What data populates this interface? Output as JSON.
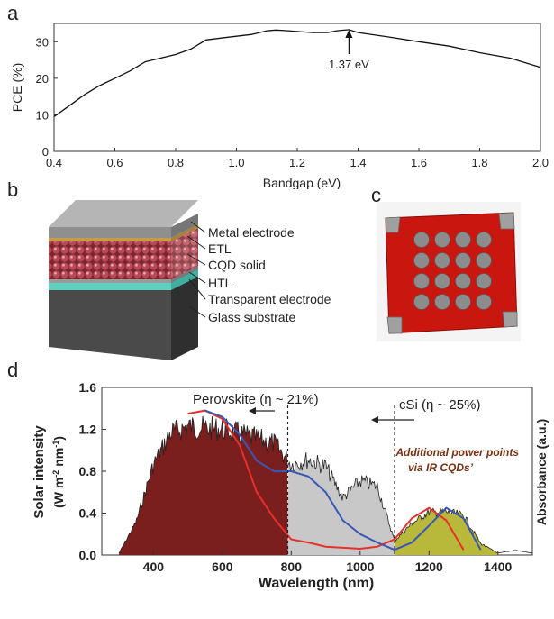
{
  "panels": {
    "a": "a",
    "b": "b",
    "c": "c",
    "d": "d"
  },
  "chart_data": [
    {
      "panel": "a",
      "type": "line",
      "xlabel": "Bandgap (eV)",
      "ylabel": "PCE (%)",
      "xlim": [
        0.4,
        2.0
      ],
      "ylim": [
        0,
        35
      ],
      "xticks": [
        "0.4",
        "0.6",
        "0.8",
        "1.0",
        "1.2",
        "1.4",
        "1.6",
        "1.8",
        "2.0"
      ],
      "yticks": [
        "0",
        "10",
        "20",
        "30"
      ],
      "annotation": "1.37 eV",
      "annotation_x": 1.37,
      "series": [
        {
          "x": [
            0.4,
            0.45,
            0.5,
            0.55,
            0.6,
            0.65,
            0.7,
            0.75,
            0.8,
            0.85,
            0.9,
            0.95,
            1.0,
            1.05,
            1.1,
            1.13,
            1.17,
            1.2,
            1.25,
            1.3,
            1.33,
            1.37,
            1.4,
            1.5,
            1.6,
            1.7,
            1.8,
            1.9,
            2.0
          ],
          "y": [
            9.5,
            12.5,
            15.5,
            18,
            20,
            22,
            24.5,
            25.5,
            26.5,
            28,
            30.5,
            31,
            31.5,
            32,
            33,
            33.2,
            33,
            32.8,
            32.5,
            32.5,
            33,
            33.3,
            32.5,
            31.3,
            30,
            28.8,
            27,
            25.5,
            23
          ]
        }
      ]
    },
    {
      "panel": "d",
      "type": "area",
      "xlabel": "Wavelength (nm)",
      "ylabel": "Solar intensity",
      "ylabel2": "(W m",
      "ylabel2_sup": "-2",
      "ylabel2_mid": " nm",
      "ylabel2_sup2": "-1",
      "ylabel2_end": ")",
      "yrlabel": "Absorbance (a.u.)",
      "xlim": [
        250,
        1500
      ],
      "ylim": [
        0,
        1.6
      ],
      "xticks": [
        "400",
        "600",
        "800",
        "1000",
        "1200",
        "1400"
      ],
      "yticks": [
        "0.0",
        "0.4",
        "0.8",
        "1.2",
        "1.6"
      ],
      "labels": {
        "perovskite": "Perovskite (η ~ 21%)",
        "csi": "cSi (η ~ 25%)",
        "ir1": "‘Additional power points",
        "ir2": "via IR CQDs’"
      },
      "dashed_lines_x": [
        790,
        1100
      ],
      "solar_spectrum": {
        "x": [
          300,
          350,
          400,
          450,
          500,
          550,
          600,
          650,
          700,
          750,
          800,
          850,
          900,
          950,
          1000,
          1050,
          1100,
          1150,
          1200,
          1250,
          1300,
          1350,
          1400,
          1450,
          1500
        ],
        "y": [
          0.02,
          0.35,
          0.95,
          1.28,
          1.35,
          1.33,
          1.32,
          1.27,
          1.22,
          1.17,
          0.95,
          1.0,
          0.93,
          0.6,
          0.78,
          0.72,
          0.15,
          0.33,
          0.45,
          0.45,
          0.42,
          0.12,
          0.02,
          0.05,
          0.02
        ]
      },
      "series": [
        {
          "name": "red",
          "x": [
            500,
            550,
            600,
            650,
            700,
            750,
            800,
            850,
            900,
            950,
            1000,
            1050,
            1100,
            1150,
            1200,
            1250,
            1300
          ],
          "y": [
            1.35,
            1.38,
            1.3,
            1.05,
            0.6,
            0.35,
            0.15,
            0.12,
            0.08,
            0.07,
            0.06,
            0.08,
            0.15,
            0.35,
            0.45,
            0.33,
            0.05
          ]
        },
        {
          "name": "blue",
          "x": [
            550,
            600,
            650,
            700,
            750,
            800,
            850,
            900,
            950,
            1000,
            1050,
            1100,
            1150,
            1200,
            1250,
            1300,
            1350
          ],
          "y": [
            1.38,
            1.32,
            1.15,
            0.9,
            0.8,
            0.8,
            0.75,
            0.6,
            0.33,
            0.2,
            0.12,
            0.05,
            0.12,
            0.28,
            0.45,
            0.35,
            0.05
          ]
        }
      ]
    }
  ],
  "diagram_b": {
    "layers": [
      "Metal electrode",
      "ETL",
      "CQD solid",
      "HTL",
      "Transparent electrode",
      "Glass substrate"
    ]
  },
  "colors": {
    "line": "#111111",
    "red_curve": "#e8302b",
    "blue_curve": "#3a57b5",
    "perovskite_fill": "#7a1e1e",
    "csi_fill": "#c8c8c8",
    "ir_fill": "#b8b83a",
    "device_red": "#cc1a12"
  }
}
